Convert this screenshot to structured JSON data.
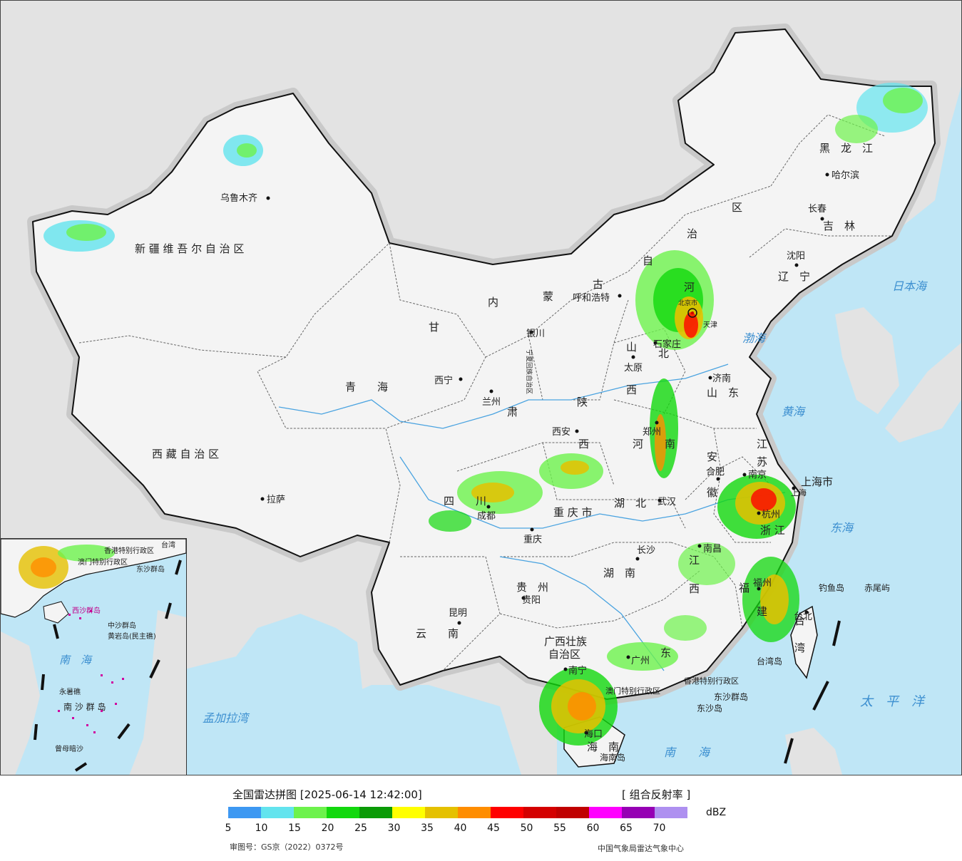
{
  "legend": {
    "title": "全国雷达拼图 [2025-06-14 12:42:00]",
    "product": "[ 组合反射率 ]",
    "unit": "dBZ",
    "ticks": [
      "5",
      "10",
      "15",
      "20",
      "25",
      "30",
      "35",
      "40",
      "45",
      "50",
      "55",
      "60",
      "65",
      "70"
    ],
    "colors": [
      "#3d98f2",
      "#63e4ee",
      "#6df24c",
      "#12d80d",
      "#0a9b06",
      "#ffff00",
      "#e5c100",
      "#ff8d00",
      "#ff0000",
      "#d40000",
      "#c00000",
      "#ff00ff",
      "#9600b4",
      "#ae90f0"
    ],
    "approval": "审图号：GS京（2022）0372号",
    "agency": "中国气象局雷达气象中心"
  },
  "regions": {
    "xinjiang": "新 疆 维 吾 尔 自 治 区",
    "tibet": "西 藏 自 治 区",
    "qinghai": "青　　海",
    "gansu": "甘",
    "gansu2": "肃",
    "neimenggu": [
      "内",
      "蒙",
      "古",
      "自",
      "治",
      "区"
    ],
    "heilongjiang": "黑　龙　江",
    "jilin": "吉　林",
    "liaoning": "辽　宁",
    "hebei": "北",
    "hebei2": "河",
    "shanxi": "山",
    "shanxi2": "西",
    "shandong": "山　东",
    "henan": "河　　南",
    "shaanxi": "陕",
    "shaanxi2": "西",
    "sichuan": "四　　川",
    "chongqing": "重 庆 市",
    "hubei": "湖　北",
    "hunan": "湖　南",
    "jiangxi": "江",
    "jiangxi2": "西",
    "anhui": "安",
    "anhui2": "徽",
    "jiangsu": "江",
    "jiangsu2": "苏",
    "zhejiang": "浙 江",
    "fujian": "福",
    "fujian2": "建",
    "guizhou": "贵　州",
    "yunnan": "云　　南",
    "guangxi": "广西壮族",
    "guangxi2": "自治区",
    "guangdong": "东",
    "hainan": "海　南",
    "shanghai": "上海市",
    "hongkong": "香港特别行政区",
    "macao": "澳门特别行政区",
    "taiwan": "台",
    "taiwan2": "湾",
    "ningxia": "宁夏回族自治区",
    "tianjin": "天津"
  },
  "cities": {
    "urumqi": "乌鲁木齐",
    "lhasa": "拉萨",
    "xining": "西宁",
    "lanzhou": "兰州",
    "yinchuan": "银川",
    "hohhot": "呼和浩特",
    "beijing": "北京市",
    "shijiazhuang": "石家庄",
    "taiyuan": "太原",
    "jinan": "济南",
    "zhengzhou": "郑州",
    "xian": "西安",
    "chengdu": "成都",
    "chongqing": "重庆",
    "wuhan": "武汉",
    "changsha": "长沙",
    "nanchang": "南昌",
    "hefei": "合肥",
    "nanjing": "南京",
    "hangzhou": "杭州",
    "fuzhou": "福州",
    "guiyang": "贵阳",
    "kunming": "昆明",
    "nanning": "南宁",
    "guangzhou": "广州",
    "haikou": "海口",
    "harbin": "哈尔滨",
    "changchun": "长春",
    "shenyang": "沈阳",
    "taipei": "台北",
    "shanghai_city": "上海"
  },
  "seas": {
    "japan_sea": "日本海",
    "bohai": "渤海",
    "yellow_sea": "黄海",
    "east_sea": "东海",
    "pacific": "太　平　洋",
    "south_sea": "南　　海",
    "bengal": "孟加拉湾"
  },
  "islands": {
    "diaoyu": "钓鱼岛",
    "chiwei": "赤尾屿",
    "taiwan_island": "台湾岛",
    "dongsha_islands": "东沙群岛",
    "dongsha_island": "东沙岛",
    "hainan_island": "海南岛"
  },
  "inset": {
    "south_sea": "南　海",
    "zhongsha": "中沙群岛",
    "nansha": "南 沙 群 岛",
    "huangyan": "黄岩岛(民主礁)",
    "yongshu": "永暑礁",
    "zengmu": "曾母暗沙",
    "xisha": "西沙群岛",
    "dongsha": "东沙群岛",
    "hk": "香港特别行政区",
    "macao": "澳门特别行政区",
    "taiwan": "台湾"
  }
}
